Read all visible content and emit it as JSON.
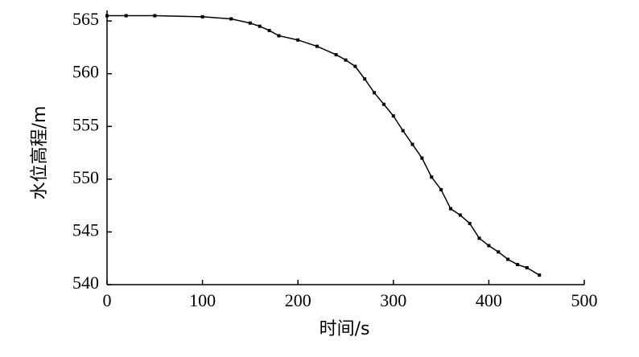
{
  "chart_data": {
    "type": "line",
    "xlabel": "时间/s",
    "ylabel": "水位高程/m",
    "x": [
      0,
      20,
      50,
      100,
      130,
      150,
      160,
      170,
      180,
      200,
      220,
      240,
      250,
      260,
      270,
      280,
      290,
      300,
      310,
      320,
      330,
      340,
      350,
      360,
      370,
      380,
      390,
      400,
      410,
      420,
      430,
      440,
      453
    ],
    "series": [
      {
        "name": "水位高程",
        "color": "#000000",
        "values": [
          565.5,
          565.5,
          565.5,
          565.4,
          565.2,
          564.8,
          564.5,
          564.1,
          563.6,
          563.2,
          562.6,
          561.8,
          561.3,
          560.7,
          559.5,
          558.2,
          557.1,
          556.0,
          554.6,
          553.3,
          552.0,
          550.2,
          549.0,
          547.2,
          546.6,
          545.8,
          544.4,
          543.7,
          543.1,
          542.4,
          541.9,
          541.6,
          540.9
        ]
      }
    ],
    "xlim": [
      0,
      500
    ],
    "xticks": [
      0,
      100,
      200,
      300,
      400,
      500
    ],
    "ylim": [
      540,
      566
    ],
    "yticks": [
      540,
      545,
      550,
      555,
      560,
      565
    ],
    "grid": false
  }
}
